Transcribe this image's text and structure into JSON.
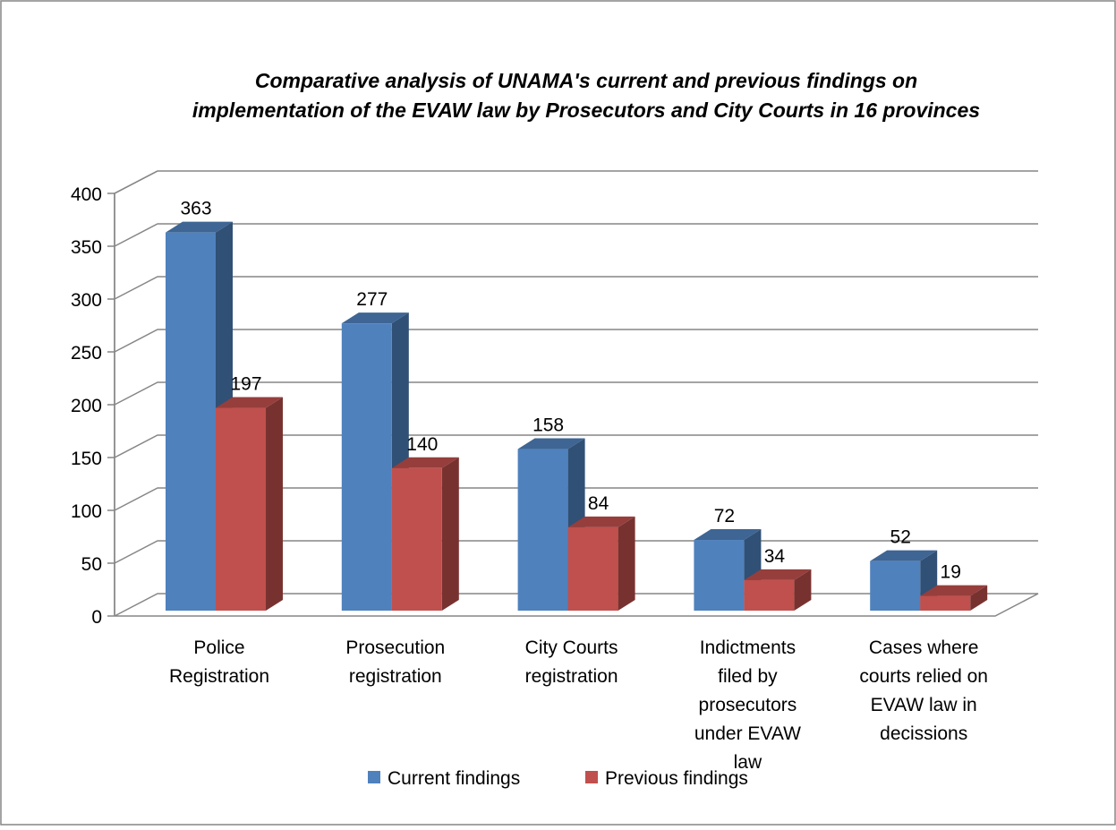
{
  "chart_data": {
    "type": "bar",
    "title_lines": [
      "Comparative analysis of UNAMA's current and previous findings on",
      "implementation of the EVAW law by Prosecutors and City Courts in 16 provinces"
    ],
    "categories": [
      [
        "Police",
        "Registration"
      ],
      [
        "Prosecution",
        "registration"
      ],
      [
        "City Courts",
        "registration"
      ],
      [
        "Indictments",
        "filed by",
        "prosecutors",
        "under EVAW",
        "law"
      ],
      [
        "Cases where",
        "courts relied on",
        "EVAW law in",
        "decissions"
      ]
    ],
    "series": [
      {
        "name": "Current findings",
        "values": [
          363,
          277,
          158,
          72,
          52
        ],
        "color": "#4f81bd"
      },
      {
        "name": "Previous findings",
        "values": [
          197,
          140,
          84,
          34,
          19
        ],
        "color": "#c0504d"
      }
    ],
    "ylim": [
      0,
      400
    ],
    "yticks": [
      0,
      50,
      100,
      150,
      200,
      250,
      300,
      350,
      400
    ],
    "grid": true,
    "legend_position": "bottom",
    "projection": "3d-clustered"
  }
}
